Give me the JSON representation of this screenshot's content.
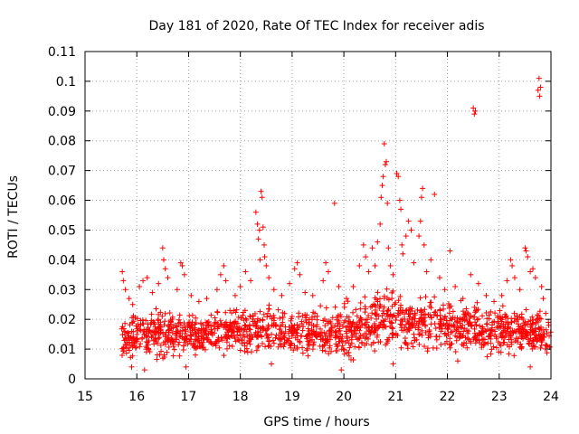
{
  "chart_data": {
    "type": "scatter",
    "title": "Day 181 of 2020, Rate Of TEC Index for receiver adis",
    "xlabel": "GPS time / hours",
    "ylabel": "ROTI / TECUs",
    "xlim": [
      15,
      24
    ],
    "ylim": [
      0,
      0.11
    ],
    "xticks": [
      15,
      16,
      17,
      18,
      19,
      20,
      21,
      22,
      23,
      24
    ],
    "xtick_labels": [
      "15",
      "16",
      "17",
      "18",
      "19",
      "20",
      "21",
      "22",
      "23",
      "24"
    ],
    "yticks": [
      0,
      0.01,
      0.02,
      0.03,
      0.04,
      0.05,
      0.06,
      0.07,
      0.08,
      0.09,
      0.1,
      0.11
    ],
    "ytick_labels": [
      "0",
      "0.01",
      "0.02",
      "0.03",
      "0.04",
      "0.05",
      "0.06",
      "0.07",
      "0.08",
      "0.09",
      "0.1",
      "0.11"
    ],
    "grid": true,
    "marker": "+",
    "color": "#ff0000",
    "series": [
      {
        "name": "ROTI",
        "points": [
          [
            15.72,
            0.036
          ],
          [
            15.74,
            0.033
          ],
          [
            15.78,
            0.03
          ],
          [
            15.85,
            0.027
          ],
          [
            15.92,
            0.025
          ],
          [
            16.05,
            0.031
          ],
          [
            16.12,
            0.033
          ],
          [
            16.2,
            0.034
          ],
          [
            16.3,
            0.029
          ],
          [
            16.42,
            0.032
          ],
          [
            16.5,
            0.044
          ],
          [
            16.52,
            0.04
          ],
          [
            16.55,
            0.037
          ],
          [
            16.6,
            0.034
          ],
          [
            16.78,
            0.03
          ],
          [
            16.85,
            0.039
          ],
          [
            16.88,
            0.038
          ],
          [
            16.92,
            0.035
          ],
          [
            17.05,
            0.028
          ],
          [
            17.2,
            0.026
          ],
          [
            17.35,
            0.027
          ],
          [
            17.55,
            0.03
          ],
          [
            17.62,
            0.035
          ],
          [
            17.68,
            0.038
          ],
          [
            17.72,
            0.033
          ],
          [
            17.9,
            0.028
          ],
          [
            18.0,
            0.031
          ],
          [
            18.1,
            0.036
          ],
          [
            18.2,
            0.033
          ],
          [
            18.3,
            0.056
          ],
          [
            18.33,
            0.052
          ],
          [
            18.35,
            0.047
          ],
          [
            18.37,
            0.05
          ],
          [
            18.4,
            0.063
          ],
          [
            18.42,
            0.061
          ],
          [
            18.44,
            0.051
          ],
          [
            18.46,
            0.045
          ],
          [
            18.47,
            0.041
          ],
          [
            18.38,
            0.04
          ],
          [
            18.5,
            0.038
          ],
          [
            18.55,
            0.034
          ],
          [
            18.65,
            0.03
          ],
          [
            18.8,
            0.028
          ],
          [
            18.95,
            0.032
          ],
          [
            19.05,
            0.037
          ],
          [
            19.1,
            0.039
          ],
          [
            19.15,
            0.035
          ],
          [
            19.25,
            0.029
          ],
          [
            19.4,
            0.028
          ],
          [
            19.6,
            0.033
          ],
          [
            19.65,
            0.039
          ],
          [
            19.7,
            0.036
          ],
          [
            19.82,
            0.059
          ],
          [
            19.9,
            0.031
          ],
          [
            20.05,
            0.027
          ],
          [
            20.18,
            0.031
          ],
          [
            20.3,
            0.038
          ],
          [
            20.38,
            0.045
          ],
          [
            20.42,
            0.041
          ],
          [
            20.48,
            0.036
          ],
          [
            20.55,
            0.044
          ],
          [
            20.6,
            0.038
          ],
          [
            20.65,
            0.046
          ],
          [
            20.7,
            0.052
          ],
          [
            20.72,
            0.061
          ],
          [
            20.74,
            0.065
          ],
          [
            20.76,
            0.068
          ],
          [
            20.78,
            0.079
          ],
          [
            20.8,
            0.072
          ],
          [
            20.82,
            0.073
          ],
          [
            20.84,
            0.059
          ],
          [
            20.86,
            0.044
          ],
          [
            20.9,
            0.038
          ],
          [
            20.95,
            0.035
          ],
          [
            21.02,
            0.069
          ],
          [
            21.05,
            0.068
          ],
          [
            21.08,
            0.06
          ],
          [
            21.1,
            0.057
          ],
          [
            21.12,
            0.045
          ],
          [
            21.14,
            0.042
          ],
          [
            21.2,
            0.048
          ],
          [
            21.25,
            0.053
          ],
          [
            21.3,
            0.05
          ],
          [
            21.35,
            0.039
          ],
          [
            21.45,
            0.048
          ],
          [
            21.48,
            0.053
          ],
          [
            21.5,
            0.061
          ],
          [
            21.52,
            0.064
          ],
          [
            21.55,
            0.045
          ],
          [
            21.6,
            0.036
          ],
          [
            21.68,
            0.04
          ],
          [
            21.75,
            0.062
          ],
          [
            21.85,
            0.034
          ],
          [
            21.95,
            0.03
          ],
          [
            22.05,
            0.043
          ],
          [
            22.15,
            0.031
          ],
          [
            22.3,
            0.027
          ],
          [
            22.45,
            0.035
          ],
          [
            22.5,
            0.091
          ],
          [
            22.52,
            0.089
          ],
          [
            22.54,
            0.09
          ],
          [
            22.6,
            0.032
          ],
          [
            22.75,
            0.028
          ],
          [
            22.9,
            0.026
          ],
          [
            23.05,
            0.028
          ],
          [
            23.15,
            0.033
          ],
          [
            23.22,
            0.04
          ],
          [
            23.25,
            0.038
          ],
          [
            23.3,
            0.034
          ],
          [
            23.4,
            0.03
          ],
          [
            23.5,
            0.044
          ],
          [
            23.52,
            0.043
          ],
          [
            23.55,
            0.041
          ],
          [
            23.6,
            0.036
          ],
          [
            23.65,
            0.037
          ],
          [
            23.7,
            0.034
          ],
          [
            23.75,
            0.097
          ],
          [
            23.77,
            0.101
          ],
          [
            23.78,
            0.095
          ],
          [
            23.8,
            0.098
          ],
          [
            23.82,
            0.031
          ],
          [
            23.85,
            0.027
          ],
          [
            23.9,
            0.022
          ],
          [
            23.95,
            0.019
          ],
          [
            15.9,
            0.004
          ],
          [
            16.15,
            0.003
          ],
          [
            16.95,
            0.004
          ],
          [
            18.6,
            0.005
          ],
          [
            19.95,
            0.003
          ],
          [
            20.95,
            0.005
          ],
          [
            22.2,
            0.006
          ],
          [
            23.6,
            0.004
          ]
        ],
        "dense_band": [
          {
            "x": 15.7,
            "min": 0.004,
            "max": 0.022
          },
          {
            "x": 15.85,
            "min": 0.004,
            "max": 0.024
          },
          {
            "x": 16.0,
            "min": 0.004,
            "max": 0.026
          },
          {
            "x": 16.25,
            "min": 0.003,
            "max": 0.026
          },
          {
            "x": 16.5,
            "min": 0.004,
            "max": 0.027
          },
          {
            "x": 16.75,
            "min": 0.005,
            "max": 0.025
          },
          {
            "x": 17.0,
            "min": 0.005,
            "max": 0.024
          },
          {
            "x": 17.25,
            "min": 0.006,
            "max": 0.023
          },
          {
            "x": 17.5,
            "min": 0.006,
            "max": 0.025
          },
          {
            "x": 17.75,
            "min": 0.006,
            "max": 0.025
          },
          {
            "x": 18.0,
            "min": 0.006,
            "max": 0.026
          },
          {
            "x": 18.25,
            "min": 0.006,
            "max": 0.027
          },
          {
            "x": 18.5,
            "min": 0.005,
            "max": 0.028
          },
          {
            "x": 18.75,
            "min": 0.005,
            "max": 0.026
          },
          {
            "x": 19.0,
            "min": 0.005,
            "max": 0.025
          },
          {
            "x": 19.25,
            "min": 0.005,
            "max": 0.025
          },
          {
            "x": 19.5,
            "min": 0.005,
            "max": 0.026
          },
          {
            "x": 19.75,
            "min": 0.004,
            "max": 0.026
          },
          {
            "x": 20.0,
            "min": 0.004,
            "max": 0.027
          },
          {
            "x": 20.25,
            "min": 0.005,
            "max": 0.029
          },
          {
            "x": 20.5,
            "min": 0.006,
            "max": 0.031
          },
          {
            "x": 20.75,
            "min": 0.006,
            "max": 0.033
          },
          {
            "x": 21.0,
            "min": 0.006,
            "max": 0.033
          },
          {
            "x": 21.25,
            "min": 0.006,
            "max": 0.032
          },
          {
            "x": 21.5,
            "min": 0.006,
            "max": 0.031
          },
          {
            "x": 21.75,
            "min": 0.007,
            "max": 0.03
          },
          {
            "x": 22.0,
            "min": 0.007,
            "max": 0.029
          },
          {
            "x": 22.25,
            "min": 0.007,
            "max": 0.029
          },
          {
            "x": 22.5,
            "min": 0.007,
            "max": 0.028
          },
          {
            "x": 22.75,
            "min": 0.006,
            "max": 0.028
          },
          {
            "x": 23.0,
            "min": 0.006,
            "max": 0.027
          },
          {
            "x": 23.25,
            "min": 0.005,
            "max": 0.028
          },
          {
            "x": 23.5,
            "min": 0.005,
            "max": 0.027
          },
          {
            "x": 23.75,
            "min": 0.005,
            "max": 0.025
          },
          {
            "x": 24.0,
            "min": 0.005,
            "max": 0.022
          }
        ]
      }
    ]
  }
}
